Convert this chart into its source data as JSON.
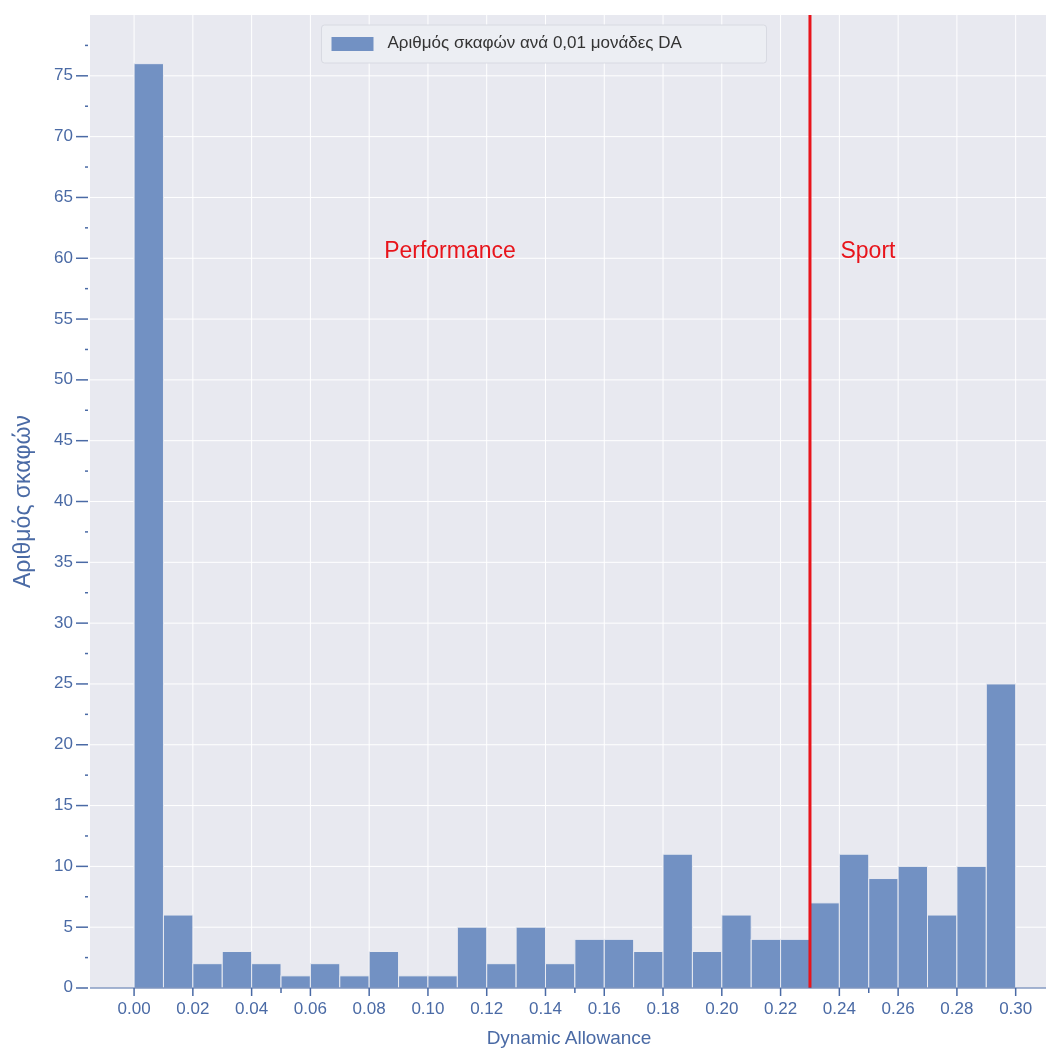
{
  "chart_data": {
    "type": "histogram",
    "xlabel": "Dynamic Allowance",
    "ylabel": "Αριθμός σκαφών",
    "bins": [
      0,
      0.01,
      0.02,
      0.03,
      0.04,
      0.05,
      0.06,
      0.07,
      0.08,
      0.09,
      0.1,
      0.11,
      0.12,
      0.13,
      0.14,
      0.15,
      0.16,
      0.17,
      0.18,
      0.19,
      0.2,
      0.21,
      0.22,
      0.23,
      0.24,
      0.25,
      0.26,
      0.27,
      0.28,
      0.29,
      0.3
    ],
    "series": [
      {
        "name": "Αριθμός σκαφών ανά 0,01 μονάδες DA",
        "color": "#7291c3",
        "values": [
          76,
          6,
          2,
          3,
          2,
          1,
          2,
          1,
          3,
          1,
          1,
          5,
          2,
          5,
          2,
          4,
          4,
          3,
          11,
          3,
          6,
          4,
          4,
          7,
          11,
          9,
          10,
          6,
          10,
          25
        ]
      }
    ],
    "xlim": [
      -0.015,
      0.311
    ],
    "ylim": [
      0,
      80
    ],
    "xticks": [
      {
        "value": 0,
        "label": "0.00"
      },
      0.02,
      0.04,
      0.06,
      0.08,
      {
        "value": 0.1,
        "label": "0.10"
      },
      0.12,
      0.14,
      0.16,
      0.18,
      {
        "value": 0.2,
        "label": "0.20"
      },
      0.22,
      0.24,
      0.26,
      0.28,
      {
        "value": 0.3,
        "label": "0.30"
      },
      {
        "value": 0.05,
        "label": null
      },
      {
        "value": 0.15,
        "label": null
      },
      {
        "value": 0.25,
        "label": null
      }
    ],
    "yticks": [
      0,
      5,
      10,
      15,
      20,
      25,
      30,
      35,
      40,
      45,
      50,
      55,
      60,
      65,
      70,
      75,
      {
        "value": 2.5,
        "label": null
      },
      {
        "value": 7.5,
        "label": null
      },
      {
        "value": 12.5,
        "label": null
      },
      {
        "value": 17.5,
        "label": null
      },
      {
        "value": 22.5,
        "label": null
      },
      {
        "value": 27.5,
        "label": null
      },
      {
        "value": 32.5,
        "label": null
      },
      {
        "value": 37.5,
        "label": null
      },
      {
        "value": 42.5,
        "label": null
      },
      {
        "value": 47.5,
        "label": null
      },
      {
        "value": 52.5,
        "label": null
      },
      {
        "value": 57.5,
        "label": null
      },
      {
        "value": 62.5,
        "label": null
      },
      {
        "value": 67.5,
        "label": null
      },
      {
        "value": 72.5,
        "label": null
      },
      {
        "value": 77.5,
        "label": null
      }
    ],
    "ref_lines": [
      {
        "axis": "x",
        "value": 0.23,
        "color": "#e8141b"
      }
    ],
    "annotations": [
      "Performance",
      "Sport"
    ],
    "grid": true,
    "legend": "top"
  }
}
